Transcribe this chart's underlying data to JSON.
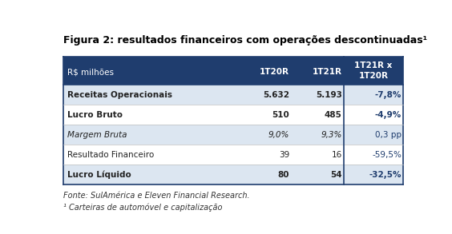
{
  "title": "Figura 2: resultados financeiros com operações descontinuadas¹",
  "header_row": [
    "R$ milhões",
    "1T20R",
    "1T21R",
    "1T21R x\n1T20R"
  ],
  "rows": [
    {
      "label": "Receitas Operacionais",
      "v1": "5.632",
      "v2": "5.193",
      "v3": "-7,8%",
      "bold": true,
      "italic": false
    },
    {
      "label": "Lucro Bruto",
      "v1": "510",
      "v2": "485",
      "v3": "-4,9%",
      "bold": true,
      "italic": false
    },
    {
      "label": "Margem Bruta",
      "v1": "9,0%",
      "v2": "9,3%",
      "v3": "0,3 pp",
      "bold": false,
      "italic": true
    },
    {
      "label": "Resultado Financeiro",
      "v1": "39",
      "v2": "16",
      "v3": "-59,5%",
      "bold": false,
      "italic": false
    },
    {
      "label": "Lucro Líquido",
      "v1": "80",
      "v2": "54",
      "v3": "-32,5%",
      "bold": true,
      "italic": false
    }
  ],
  "footer_lines": [
    "Fonte: SulAmérica e Eleven Financial Research.",
    "¹ Carteiras de automóvel e capitalização"
  ],
  "header_bg": "#1f3d6e",
  "header_text_color": "#ffffff",
  "row_bg_light": "#dce6f1",
  "row_bg_white": "#ffffff",
  "last_col_header_bg": "#1f3d6e",
  "last_col_header_text": "#ffffff",
  "last_col_data_bg_light": "#dce6f1",
  "last_col_data_bg_white": "#ffffff",
  "last_col_data_text": "#1f3d6e",
  "border_color": "#1f3d6e",
  "divider_color": "#c0c0c0",
  "title_color": "#000000",
  "body_text_color": "#222222",
  "figsize": [
    5.64,
    2.93
  ],
  "dpi": 100
}
